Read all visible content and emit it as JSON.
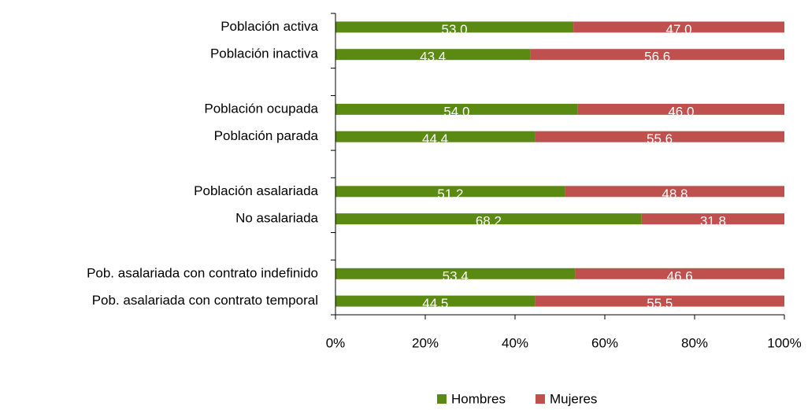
{
  "chart_data": {
    "type": "stacked-bar-horizontal",
    "categories": [
      "Población activa",
      "Población inactiva",
      null,
      "Población ocupada",
      "Población parada",
      null,
      "Población asalariada",
      "No asalariada",
      null,
      "Pob. asalariada con contrato indefinido",
      "Pob. asalariada con contrato temporal"
    ],
    "series": [
      {
        "name": "Hombres",
        "color": "#5b8a12",
        "values": [
          53.0,
          43.4,
          null,
          54.0,
          44.4,
          null,
          51.2,
          68.2,
          null,
          53.4,
          44.5
        ],
        "value_labels": [
          "53.0",
          "43.4",
          null,
          "54.0",
          "44.4",
          null,
          "51.2",
          "68.2",
          null,
          "53.4",
          "44.5"
        ]
      },
      {
        "name": "Mujeres",
        "color": "#c0504d",
        "values": [
          47.0,
          56.6,
          null,
          46.0,
          55.6,
          null,
          48.8,
          31.8,
          null,
          46.6,
          55.5
        ],
        "value_labels": [
          "47.0",
          "56.6",
          null,
          "46.0",
          "55.6",
          null,
          "48.8",
          "31.8",
          null,
          "46.6",
          "55.5"
        ]
      }
    ],
    "xlim": [
      0,
      100
    ],
    "xticks": [
      {
        "value": 0,
        "label": "0%"
      },
      {
        "value": 20,
        "label": "20%"
      },
      {
        "value": 40,
        "label": "40%"
      },
      {
        "value": 60,
        "label": "60%"
      },
      {
        "value": 80,
        "label": "80%"
      },
      {
        "value": 100,
        "label": "100%"
      }
    ],
    "legend": "bottom"
  }
}
